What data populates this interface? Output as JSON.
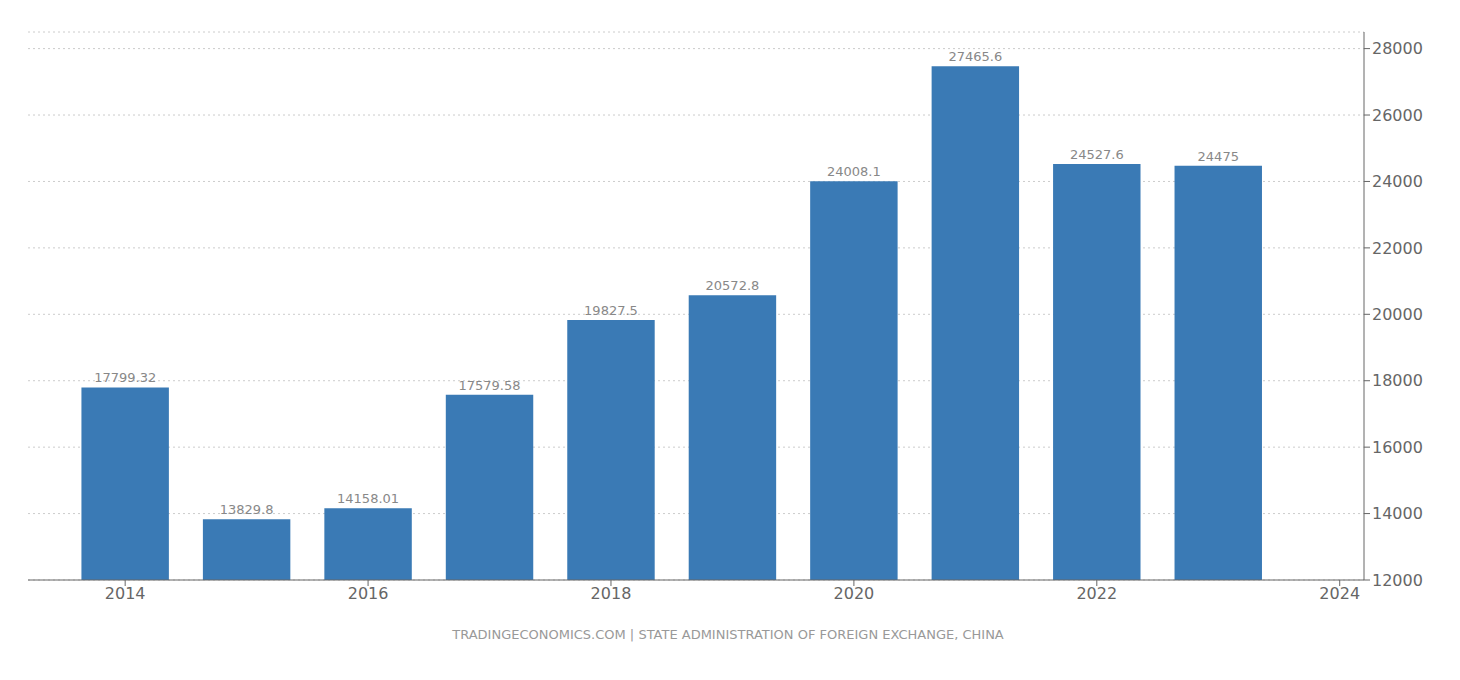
{
  "chart_data": {
    "type": "bar",
    "x": [
      2014,
      2015,
      2016,
      2017,
      2018,
      2019,
      2020,
      2021,
      2022,
      2023
    ],
    "values": [
      17799.32,
      13829.8,
      14158.01,
      17579.58,
      19827.5,
      20572.8,
      24008.1,
      27465.6,
      24527.6,
      24475
    ],
    "color": "#3a7ab5",
    "xlim": [
      2013.2,
      2024.2
    ],
    "xticks": [
      2014,
      2016,
      2018,
      2020,
      2022,
      2024
    ],
    "ylim": [
      12000,
      28500
    ],
    "yticks": [
      12000,
      14000,
      16000,
      18000,
      20000,
      22000,
      24000,
      26000,
      28000
    ],
    "grid": true,
    "data_labels": true,
    "annotations": [
      "TRADINGECONOMICS.COM | STATE ADMINISTRATION OF FOREIGN EXCHANGE, CHINA"
    ]
  }
}
